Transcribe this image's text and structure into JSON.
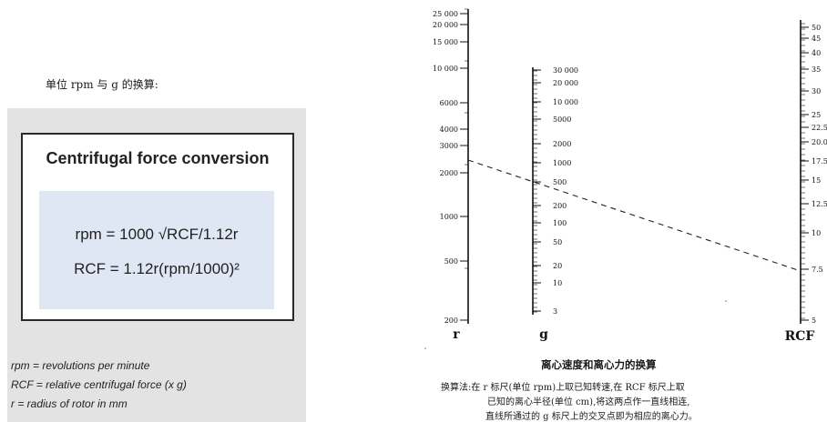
{
  "heading": "单位 rpm 与 g 的换算:",
  "figure": {
    "title": "Centrifugal force conversion",
    "formula_rpm": "rpm = 1000 √RCF/1.12r",
    "formula_rcf": "RCF = 1.12r(rpm/1000)²",
    "legend": [
      "rpm = revolutions per minute",
      "RCF = relative centrifugal force (x g)",
      "r = radius of rotor in mm"
    ]
  },
  "nomogram": {
    "r_scale": {
      "label": "r",
      "ticks": [
        "25 000",
        "20 000",
        "15 000",
        "10 000",
        "6000",
        "4000",
        "3000",
        "2000",
        "1000",
        "500",
        "200"
      ]
    },
    "g_scale": {
      "label": "g",
      "ticks": [
        "30 000",
        "20 000",
        "10 000",
        "5000",
        "2000",
        "1000",
        "500",
        "200",
        "100",
        "50",
        "20",
        "10",
        "3"
      ]
    },
    "rcf_scale": {
      "label": "RCF",
      "ticks": [
        "50",
        "45",
        "40",
        "35",
        "30",
        "25",
        "22.5",
        "20.0",
        "17.5",
        "15",
        "12.5",
        "10",
        "7.5",
        "5"
      ]
    },
    "caption_title": "离心速度和离心力的换算",
    "caption_lines": [
      "换算法:在 r 标尺(单位 rpm)上取已知转速,在 RCF 标尺上取",
      "已知的离心半径(单位 cm),将这两点作一直线相连,",
      "直线所通过的 g 标尺上的交叉点即为相应的离心力。"
    ]
  }
}
